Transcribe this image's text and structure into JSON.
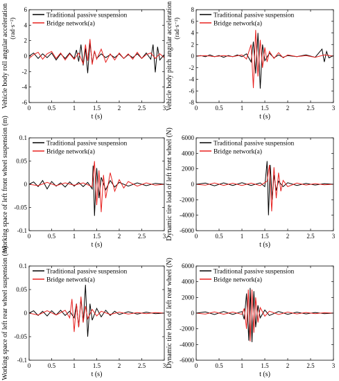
{
  "chart_data": [
    {
      "type": "line",
      "xlabel": "t (s)",
      "ylabel": "Vehicle body roll angular acceleration",
      "yunit": "(rad·s⁻²)",
      "xlim": [
        0,
        3
      ],
      "ylim": [
        -6,
        6
      ],
      "xticks": [
        "0",
        "0.5",
        "1",
        "1.5",
        "2",
        "2.5",
        "3"
      ],
      "yticks": [
        "6",
        "4",
        "2",
        "0",
        "-2",
        "-4",
        "-6"
      ],
      "legend": [
        "Traditional passive suspension",
        "Bridge network(a)"
      ],
      "grid": false,
      "series": [
        {
          "name": "Traditional passive suspension",
          "color": "#000000",
          "x": [
            0,
            0.1,
            0.2,
            0.3,
            0.4,
            0.5,
            0.6,
            0.7,
            0.8,
            0.9,
            1.0,
            1.05,
            1.1,
            1.15,
            1.2,
            1.25,
            1.3,
            1.35,
            1.4,
            1.45,
            1.5,
            1.6,
            1.7,
            1.8,
            1.9,
            2.0,
            2.1,
            2.2,
            2.3,
            2.4,
            2.5,
            2.6,
            2.7,
            2.75,
            2.8,
            2.85,
            2.9,
            3.0
          ],
          "y": [
            0,
            0.4,
            -0.3,
            0.3,
            -0.2,
            0.4,
            -0.5,
            0.3,
            -0.3,
            0.4,
            -0.3,
            0.8,
            -0.7,
            1.5,
            -1.2,
            1.0,
            -2.2,
            1.8,
            -0.9,
            0.6,
            -0.3,
            0.3,
            -0.2,
            0.2,
            -0.2,
            0.3,
            -0.3,
            0.2,
            -0.2,
            0.3,
            -0.3,
            0.4,
            -0.4,
            1.5,
            -2.1,
            1.2,
            -0.5,
            0.2
          ]
        },
        {
          "name": "Bridge network(a)",
          "color": "#e8201e",
          "x": [
            0,
            0.1,
            0.2,
            0.3,
            0.4,
            0.5,
            0.6,
            0.7,
            0.8,
            0.9,
            1.0,
            1.1,
            1.2,
            1.25,
            1.3,
            1.35,
            1.4,
            1.45,
            1.5,
            1.6,
            1.7,
            1.8,
            1.9,
            2.0,
            2.1,
            2.2,
            2.3,
            2.4,
            2.5,
            2.6,
            2.7,
            2.8,
            2.9,
            3.0
          ],
          "y": [
            -0.3,
            0.2,
            0.5,
            -0.4,
            0.3,
            0.6,
            -0.3,
            0.4,
            -0.5,
            0.3,
            -0.4,
            0.4,
            -1.0,
            1.5,
            -0.6,
            2.2,
            -1.1,
            0.7,
            -0.4,
            0.9,
            -0.8,
            0.3,
            -0.5,
            0.4,
            -0.3,
            0.3,
            -0.4,
            0.5,
            -0.3,
            0.2,
            0.4,
            -0.3,
            0.3,
            -0.2
          ]
        }
      ]
    },
    {
      "type": "line",
      "xlabel": "t (s)",
      "ylabel": "Vehicle body pitch angular acceleration",
      "yunit": "(rad·s⁻²)",
      "xlim": [
        0,
        3
      ],
      "ylim": [
        -8,
        8
      ],
      "xticks": [
        "0",
        "0.5",
        "1",
        "1.5",
        "2",
        "2.5",
        "3"
      ],
      "yticks": [
        "8",
        "6",
        "4",
        "2",
        "0",
        "-2",
        "-4",
        "-6",
        "-8"
      ],
      "legend": [
        "Traditional passive suspension",
        "Bridge network(a)"
      ],
      "grid": false,
      "series": [
        {
          "name": "Traditional passive suspension",
          "color": "#000000",
          "x": [
            0,
            0.1,
            0.2,
            0.3,
            0.4,
            0.5,
            0.6,
            0.7,
            0.8,
            0.9,
            1.0,
            1.1,
            1.2,
            1.25,
            1.3,
            1.35,
            1.4,
            1.45,
            1.5,
            1.6,
            1.7,
            1.8,
            1.9,
            2.0,
            2.2,
            2.4,
            2.6,
            2.75,
            2.8,
            2.85,
            2.9,
            3.0
          ],
          "y": [
            0,
            0.1,
            -0.1,
            0.2,
            -0.1,
            0.1,
            -0.2,
            0.1,
            -0.1,
            0.2,
            -0.1,
            0.4,
            -1.0,
            2.5,
            -3.0,
            4.0,
            -5.6,
            2.0,
            -0.8,
            0.5,
            -0.3,
            0.2,
            -0.2,
            0.1,
            -0.1,
            0.2,
            -0.2,
            1.2,
            -1.0,
            0.8,
            -0.3,
            0.1
          ]
        },
        {
          "name": "Bridge network(a)",
          "color": "#e8201e",
          "x": [
            0,
            0.2,
            0.4,
            0.6,
            0.8,
            1.0,
            1.1,
            1.2,
            1.25,
            1.3,
            1.35,
            1.4,
            1.45,
            1.5,
            1.55,
            1.6,
            1.7,
            1.8,
            1.9,
            2.0,
            2.2,
            2.4,
            2.6,
            2.8,
            3.0
          ],
          "y": [
            0,
            0.1,
            -0.1,
            0.1,
            -0.1,
            0.2,
            -0.5,
            2.0,
            -5.5,
            4.5,
            -3.5,
            2.8,
            -2.0,
            1.5,
            -1.0,
            0.8,
            -0.4,
            0.6,
            -0.3,
            0.2,
            -0.1,
            0.1,
            -0.2,
            0.2,
            0
          ]
        }
      ]
    },
    {
      "type": "line",
      "xlabel": "t (s)",
      "ylabel": "Working space of left front wheel suspension (m)",
      "xlim": [
        0,
        3
      ],
      "ylim": [
        -0.1,
        0.1
      ],
      "xticks": [
        "0",
        "0.5",
        "1",
        "1.5",
        "2",
        "2.5",
        "3"
      ],
      "yticks": [
        "0.1",
        "0.05",
        "0",
        "-0.05",
        "-0.1"
      ],
      "legend": [
        "Traditional passive suspension",
        "Bridge network(a)"
      ],
      "grid": false,
      "series": [
        {
          "name": "Traditional passive suspension",
          "color": "#000000",
          "x": [
            0,
            0.1,
            0.2,
            0.3,
            0.4,
            0.5,
            0.6,
            0.7,
            0.8,
            0.9,
            1.0,
            1.1,
            1.2,
            1.3,
            1.4,
            1.42,
            1.45,
            1.5,
            1.55,
            1.6,
            1.7,
            1.8,
            1.9,
            2.0,
            2.2,
            2.4,
            2.6,
            2.8,
            3.0
          ],
          "y": [
            0,
            0.005,
            -0.005,
            0.008,
            -0.01,
            0.006,
            -0.004,
            0.003,
            -0.006,
            0.005,
            -0.004,
            0.004,
            -0.005,
            0.004,
            -0.01,
            0.04,
            -0.068,
            0.035,
            -0.03,
            0.015,
            -0.012,
            0.008,
            -0.006,
            0.004,
            -0.004,
            0.003,
            -0.003,
            0.002,
            0
          ]
        },
        {
          "name": "Bridge network(a)",
          "color": "#e8201e",
          "x": [
            0,
            0.2,
            0.4,
            0.6,
            0.8,
            1.0,
            1.2,
            1.4,
            1.45,
            1.5,
            1.55,
            1.6,
            1.65,
            1.7,
            1.8,
            1.9,
            2.0,
            2.1,
            2.2,
            2.4,
            2.6,
            2.8,
            3.0
          ],
          "y": [
            0,
            -0.003,
            0.004,
            -0.003,
            0.003,
            -0.002,
            0.003,
            -0.005,
            0.05,
            -0.045,
            0.03,
            -0.06,
            0.02,
            -0.03,
            0.025,
            -0.015,
            0.01,
            -0.008,
            0.006,
            -0.004,
            0.003,
            -0.002,
            0
          ]
        }
      ]
    },
    {
      "type": "line",
      "xlabel": "t (s)",
      "ylabel": "Dynamic tire load of left front wheel (N)",
      "xlim": [
        0,
        3
      ],
      "ylim": [
        -6000,
        6000
      ],
      "xticks": [
        "0",
        "0.5",
        "1",
        "1.5",
        "2",
        "2.5",
        "3"
      ],
      "yticks": [
        "6000",
        "4000",
        "2000",
        "0",
        "-2000",
        "-4000",
        "-6000"
      ],
      "legend": [
        "Traditional passive suspension",
        "Bridge network(a)"
      ],
      "grid": false,
      "series": [
        {
          "name": "Traditional passive suspension",
          "color": "#000000",
          "x": [
            0,
            0.2,
            0.4,
            0.6,
            0.8,
            1.0,
            1.2,
            1.4,
            1.5,
            1.55,
            1.58,
            1.62,
            1.66,
            1.7,
            1.75,
            1.8,
            1.9,
            2.0,
            2.2,
            2.4,
            2.6,
            2.8,
            3.0
          ],
          "y": [
            0,
            150,
            -200,
            180,
            -150,
            200,
            -150,
            180,
            -300,
            3000,
            -4000,
            2500,
            -2000,
            1200,
            -800,
            400,
            -300,
            200,
            -150,
            120,
            -100,
            80,
            0
          ]
        },
        {
          "name": "Bridge network(a)",
          "color": "#e8201e",
          "x": [
            0,
            0.2,
            0.4,
            0.6,
            0.8,
            1.0,
            1.2,
            1.4,
            1.55,
            1.6,
            1.65,
            1.7,
            1.75,
            1.8,
            1.85,
            1.9,
            2.0,
            2.2,
            2.4,
            2.6,
            2.8,
            3.0
          ],
          "y": [
            0,
            -120,
            160,
            -140,
            130,
            -150,
            140,
            -160,
            400,
            2500,
            -3500,
            2200,
            -1800,
            1500,
            -900,
            500,
            -300,
            150,
            -100,
            80,
            -60,
            0
          ]
        }
      ]
    },
    {
      "type": "line",
      "xlabel": "t (s)",
      "ylabel": "Working space of left rear wheel suspension (m)",
      "xlim": [
        0,
        3
      ],
      "ylim": [
        -0.1,
        0.1
      ],
      "xticks": [
        "0",
        "0.5",
        "1",
        "1.5",
        "2",
        "2.5",
        "3"
      ],
      "yticks": [
        "0.1",
        "0.05",
        "0",
        "-0.05",
        "-0.1"
      ],
      "legend": [
        "Traditional passive suspension",
        "Bridge network(a)"
      ],
      "grid": false,
      "series": [
        {
          "name": "Traditional passive suspension",
          "color": "#000000",
          "x": [
            0,
            0.1,
            0.2,
            0.3,
            0.4,
            0.5,
            0.6,
            0.7,
            0.8,
            0.9,
            1.0,
            1.05,
            1.1,
            1.15,
            1.2,
            1.25,
            1.3,
            1.35,
            1.4,
            1.5,
            1.6,
            1.7,
            1.8,
            1.9,
            2.0,
            2.2,
            2.4,
            2.6,
            2.8,
            3.0
          ],
          "y": [
            0,
            0.005,
            -0.005,
            0.004,
            -0.006,
            0.005,
            -0.004,
            0.006,
            -0.005,
            0.004,
            -0.01,
            0.02,
            -0.03,
            0.03,
            -0.02,
            0.06,
            -0.05,
            0.02,
            -0.015,
            0.01,
            -0.008,
            0.006,
            -0.005,
            0.004,
            -0.003,
            0.003,
            -0.002,
            0.002,
            -0.001,
            0
          ]
        },
        {
          "name": "Bridge network(a)",
          "color": "#e8201e",
          "x": [
            0,
            0.2,
            0.4,
            0.6,
            0.8,
            0.9,
            0.95,
            1.0,
            1.05,
            1.1,
            1.15,
            1.2,
            1.25,
            1.3,
            1.4,
            1.5,
            1.6,
            1.8,
            2.0,
            2.2,
            2.4,
            2.6,
            2.8,
            3.0
          ],
          "y": [
            0,
            -0.004,
            0.005,
            -0.004,
            0.006,
            -0.01,
            0.03,
            -0.04,
            0.02,
            -0.03,
            0.035,
            -0.02,
            0.015,
            -0.012,
            0.008,
            -0.006,
            0.004,
            -0.003,
            0.002,
            -0.002,
            0.001,
            -0.001,
            0.001,
            0
          ]
        }
      ]
    },
    {
      "type": "line",
      "xlabel": "t (s)",
      "ylabel": "Dynamic tire load of left rear wheel (N)",
      "xlim": [
        0,
        3
      ],
      "ylim": [
        -6000,
        6000
      ],
      "xticks": [
        "0",
        "0.5",
        "1",
        "1.5",
        "2",
        "2.5",
        "3"
      ],
      "yticks": [
        "6000",
        "4000",
        "2000",
        "0",
        "-2000",
        "-4000",
        "-6000"
      ],
      "legend": [
        "Traditional passive suspension",
        "Bridge network(a)"
      ],
      "grid": false,
      "series": [
        {
          "name": "Traditional passive suspension",
          "color": "#000000",
          "x": [
            0,
            0.2,
            0.4,
            0.6,
            0.8,
            1.0,
            1.05,
            1.1,
            1.15,
            1.18,
            1.22,
            1.26,
            1.3,
            1.35,
            1.4,
            1.5,
            1.6,
            1.8,
            2.0,
            2.2,
            2.4,
            2.6,
            2.8,
            3.0
          ],
          "y": [
            0,
            150,
            -180,
            200,
            -160,
            200,
            -800,
            2500,
            -3500,
            3200,
            -3700,
            2800,
            -1800,
            1000,
            -600,
            400,
            -300,
            200,
            -150,
            120,
            -100,
            80,
            -60,
            0
          ]
        },
        {
          "name": "Bridge network(a)",
          "color": "#e8201e",
          "x": [
            0,
            0.2,
            0.4,
            0.6,
            0.8,
            1.0,
            1.05,
            1.1,
            1.14,
            1.18,
            1.22,
            1.26,
            1.3,
            1.35,
            1.4,
            1.5,
            1.6,
            1.8,
            2.0,
            2.2,
            2.4,
            2.6,
            2.8,
            3.0
          ],
          "y": [
            0,
            -120,
            150,
            -140,
            130,
            -150,
            600,
            -2000,
            3000,
            -3600,
            3000,
            -2500,
            2000,
            -1200,
            700,
            -400,
            250,
            -180,
            130,
            -100,
            80,
            -60,
            40,
            0
          ]
        }
      ]
    }
  ]
}
